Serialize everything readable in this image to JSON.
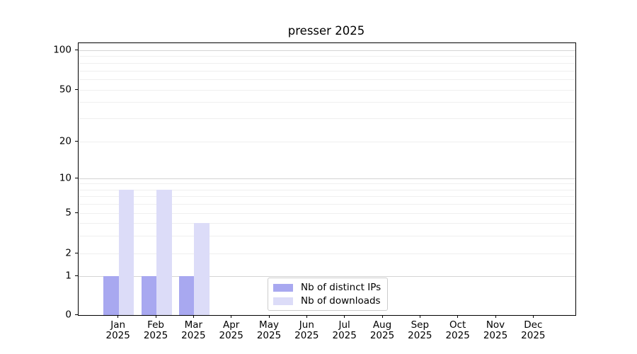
{
  "title": "presser 2025",
  "chart_data": {
    "type": "bar",
    "title": "presser 2025",
    "categories": [
      "Jan 2025",
      "Feb 2025",
      "Mar 2025",
      "Apr 2025",
      "May 2025",
      "Jun 2025",
      "Jul 2025",
      "Aug 2025",
      "Sep 2025",
      "Oct 2025",
      "Nov 2025",
      "Dec 2025"
    ],
    "x_tick_months": [
      "Jan",
      "Feb",
      "Mar",
      "Apr",
      "May",
      "Jun",
      "Jul",
      "Aug",
      "Sep",
      "Oct",
      "Nov",
      "Dec"
    ],
    "x_tick_year": "2025",
    "series": [
      {
        "name": "Nb of distinct IPs",
        "color": "#a8a8f0",
        "values": [
          1,
          1,
          1,
          0,
          0,
          0,
          0,
          0,
          0,
          0,
          0,
          0
        ]
      },
      {
        "name": "Nb of downloads",
        "color": "#dcdcf8",
        "values": [
          8,
          8,
          4,
          0,
          0,
          0,
          0,
          0,
          0,
          0,
          0,
          0
        ]
      }
    ],
    "yscale": "symlog",
    "y_tick_labels": [
      "0",
      "1",
      "2",
      "5",
      "10",
      "20",
      "50",
      "100"
    ],
    "y_tick_values": [
      0,
      1,
      2,
      5,
      10,
      20,
      50,
      100
    ],
    "ylim": [
      0,
      110
    ],
    "grid": "horizontal, major and minor",
    "legend_position": "inside lower center"
  },
  "colors": {
    "bar_distinct_ips": "#a8a8f0",
    "bar_downloads": "#dcdcf8",
    "grid_major": "#d4d4d4",
    "grid_minor": "#efefef",
    "axis_spine": "#000000",
    "legend_border": "#cccccc",
    "background": "#ffffff"
  }
}
